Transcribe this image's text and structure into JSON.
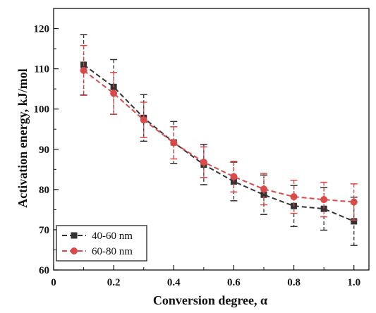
{
  "chart_data": {
    "type": "line",
    "xlabel": "Conversion degree, α",
    "ylabel": "Activation energy, kJ/mol",
    "xlim": [
      0,
      1.05
    ],
    "ylim": [
      60,
      125
    ],
    "x_ticks": [
      0,
      0.2,
      0.4,
      0.6,
      0.8,
      1.0
    ],
    "x_tick_labels": [
      "0",
      "0.2",
      "0.4",
      "0.6",
      "0.8",
      "1.0"
    ],
    "y_ticks": [
      60,
      70,
      80,
      90,
      100,
      110,
      120
    ],
    "y_tick_labels": [
      "60",
      "70",
      "80",
      "90",
      "100",
      "110",
      "120"
    ],
    "grid": false,
    "legend_position": "bottom-left",
    "x": [
      0.1,
      0.2,
      0.3,
      0.4,
      0.5,
      0.6,
      0.7,
      0.8,
      0.9,
      1.0
    ],
    "series": [
      {
        "name": "40-60 nm",
        "color": "#333333",
        "marker": "square",
        "values": [
          111.0,
          105.5,
          97.8,
          91.7,
          86.2,
          82.0,
          78.7,
          75.9,
          75.2,
          72.1
        ],
        "errors": [
          7.5,
          6.8,
          5.8,
          5.2,
          5.0,
          4.8,
          4.9,
          5.1,
          5.3,
          6.0
        ]
      },
      {
        "name": "60-80 nm",
        "color": "#d94a4a",
        "marker": "circle",
        "values": [
          109.6,
          103.9,
          97.3,
          91.6,
          86.8,
          83.2,
          80.1,
          78.2,
          77.5,
          76.9
        ],
        "errors": [
          6.2,
          5.2,
          4.4,
          4.0,
          3.8,
          3.8,
          3.9,
          4.1,
          4.3,
          4.5
        ]
      }
    ]
  }
}
